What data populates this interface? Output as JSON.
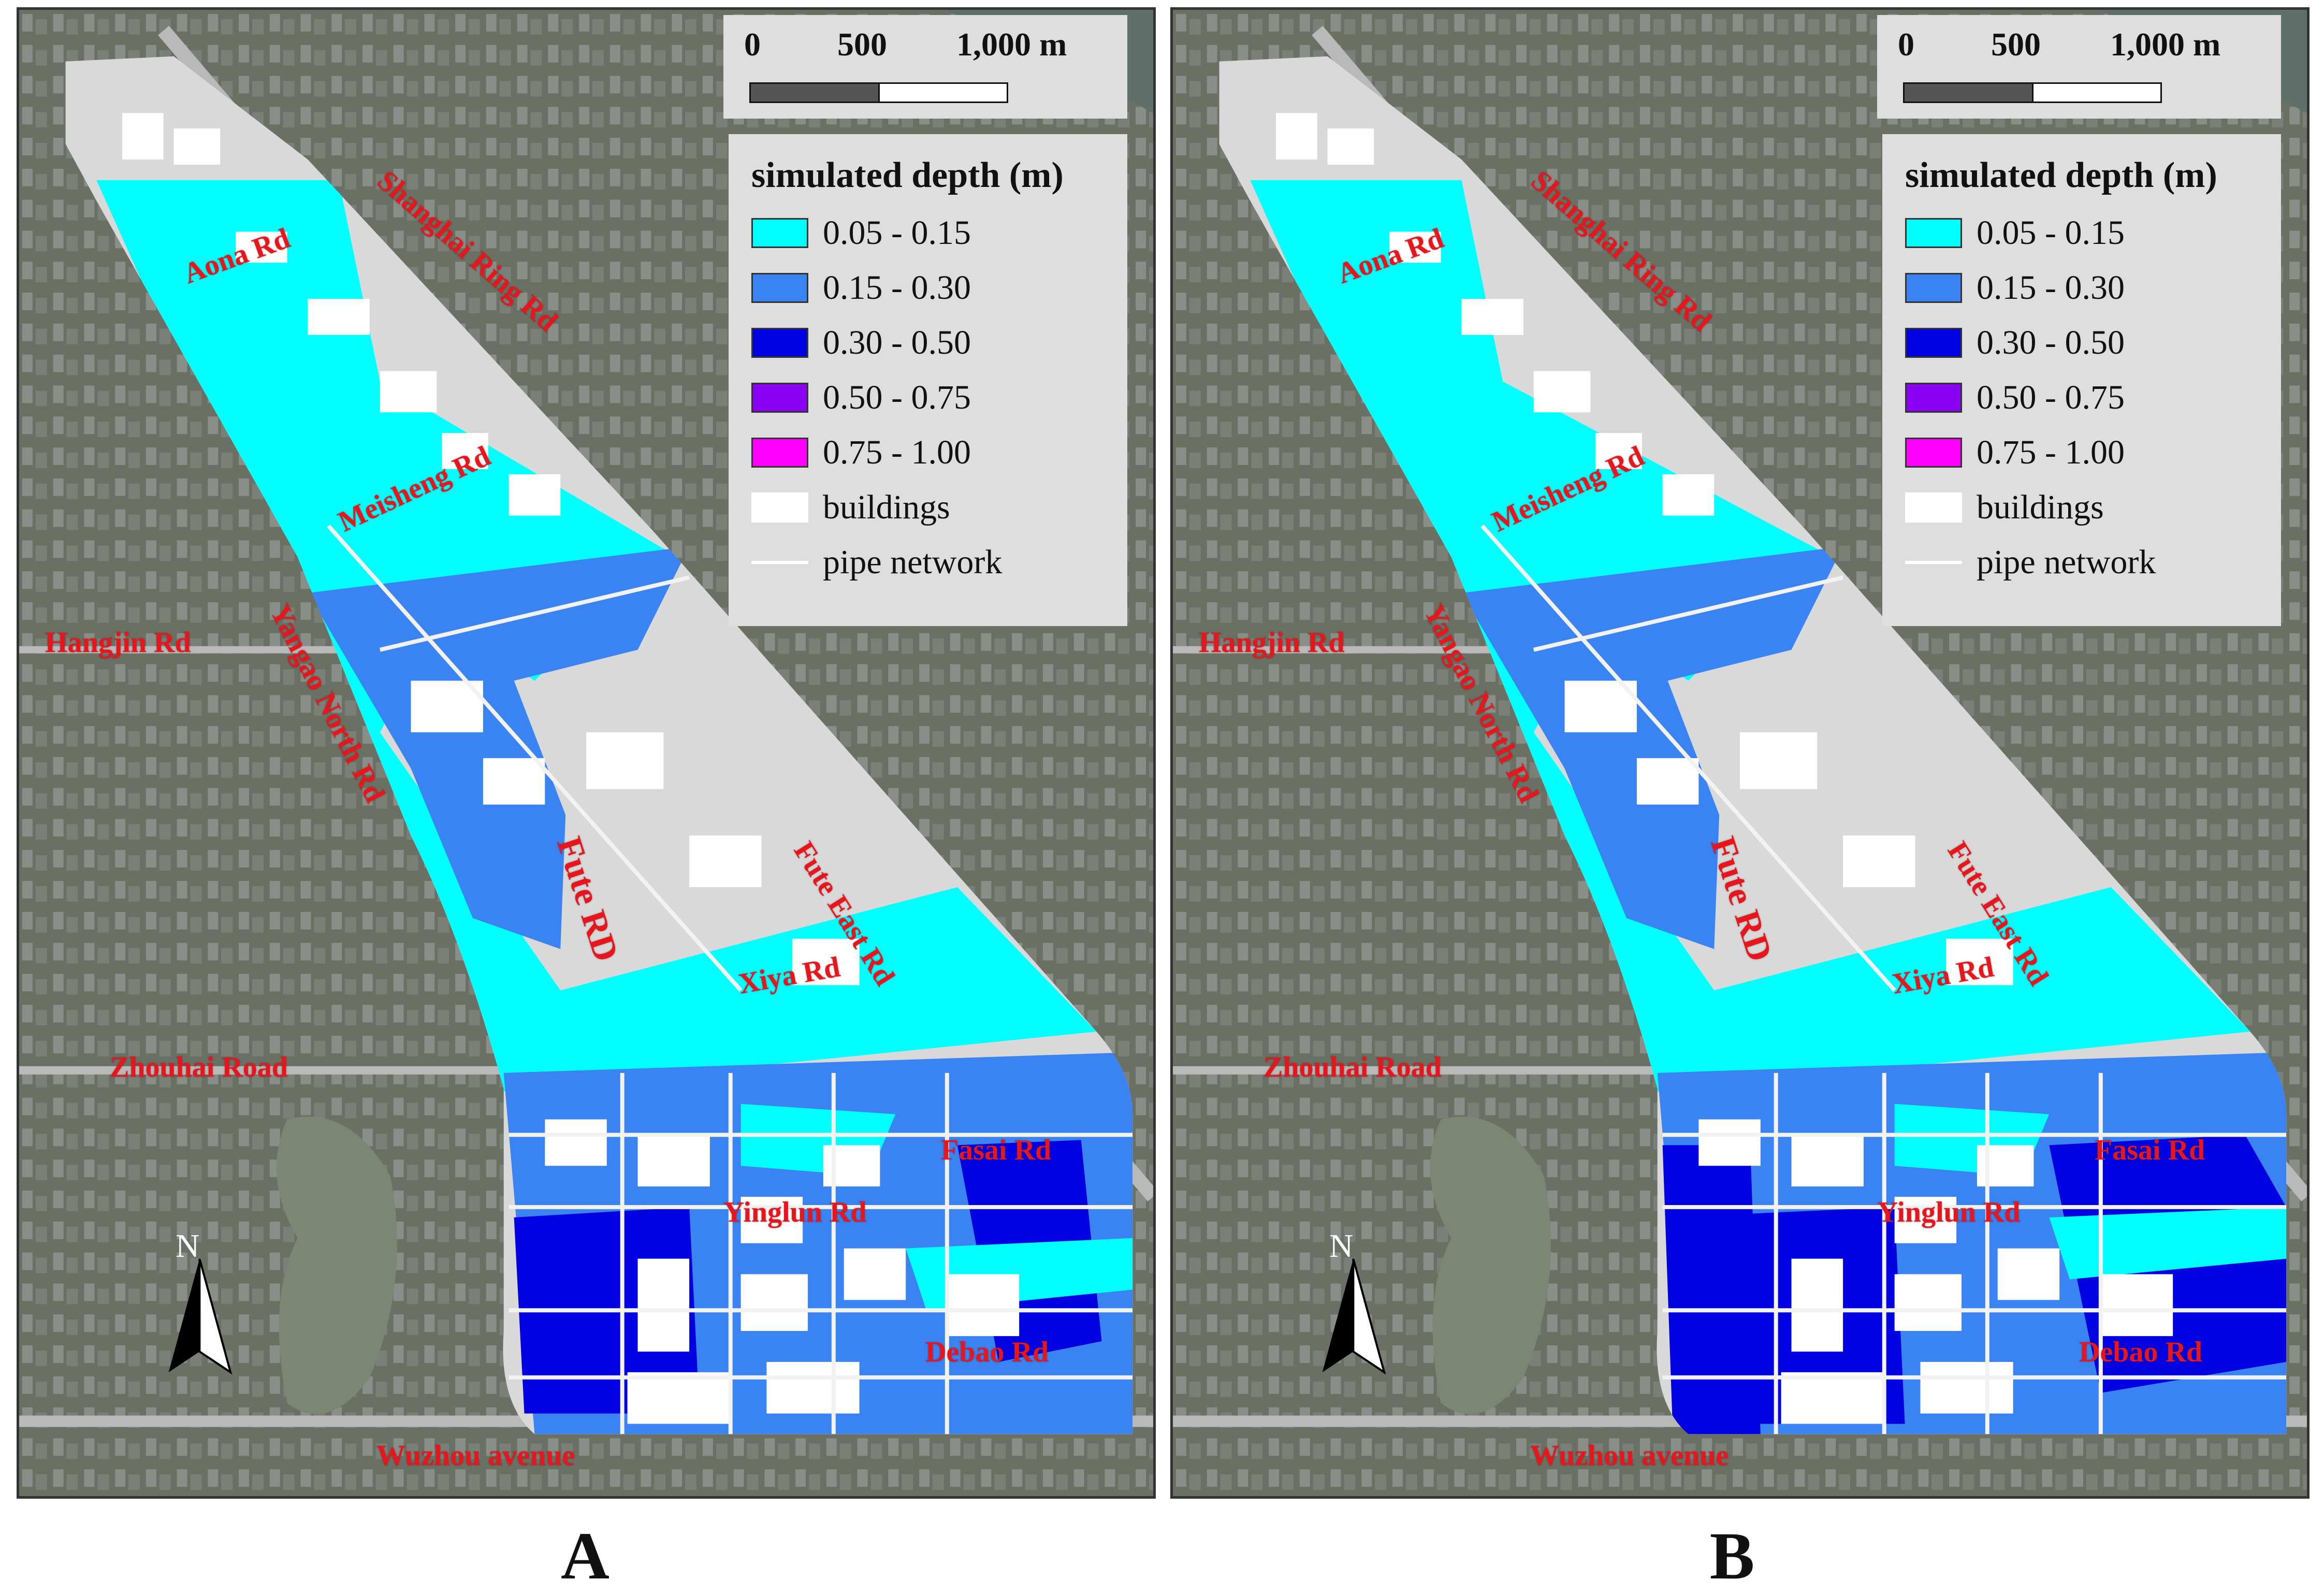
{
  "panels": [
    {
      "id": "A",
      "letter": "A",
      "scale": {
        "ticks": [
          "0",
          "500",
          "1,000 m"
        ]
      },
      "legend": {
        "title": "simulated depth (m)",
        "items": [
          {
            "label": "0.05 - 0.15",
            "color": "#00ffff"
          },
          {
            "label": "0.15 - 0.30",
            "color": "#3a83f2"
          },
          {
            "label": "0.30 - 0.50",
            "color": "#0000e0"
          },
          {
            "label": "0.50 - 0.75",
            "color": "#8a00f0"
          },
          {
            "label": "0.75 - 1.00",
            "color": "#ff00ff"
          },
          {
            "label": "buildings",
            "color": "#ffffff"
          },
          {
            "label": "pipe network",
            "color": "#ffffff"
          }
        ]
      },
      "north_label": "N",
      "roads": [
        "Shanghai Ring Rd",
        "Aona Rd",
        "Meisheng Rd",
        "Yangao North Rd",
        "Hangjin Rd",
        "Fute RD",
        "Fute East Rd",
        "Xiya Rd",
        "Zhouhai Road",
        "Fasai Rd",
        "Yinglun Rd",
        "Debao Rd",
        "Wuzhou avenue"
      ]
    },
    {
      "id": "B",
      "letter": "B",
      "scale": {
        "ticks": [
          "0",
          "500",
          "1,000 m"
        ]
      },
      "legend": {
        "title": "simulated depth (m)",
        "items": [
          {
            "label": "0.05 - 0.15",
            "color": "#00ffff"
          },
          {
            "label": "0.15 - 0.30",
            "color": "#3a83f2"
          },
          {
            "label": "0.30 - 0.50",
            "color": "#0000e0"
          },
          {
            "label": "0.50 - 0.75",
            "color": "#8a00f0"
          },
          {
            "label": "0.75 - 1.00",
            "color": "#ff00ff"
          },
          {
            "label": "buildings",
            "color": "#ffffff"
          },
          {
            "label": "pipe network",
            "color": "#ffffff"
          }
        ]
      },
      "north_label": "N",
      "roads": [
        "Shanghai Ring Rd",
        "Aona Rd",
        "Meisheng Rd",
        "Yangao North Rd",
        "Hangjin Rd",
        "Fute RD",
        "Fute East Rd",
        "Xiya Rd",
        "Zhouhai Road",
        "Fasai Rd",
        "Yinglun Rd",
        "Debao Rd",
        "Wuzhou avenue"
      ]
    }
  ],
  "colors": {
    "background_imagery": "#5d6357",
    "road_label": "#e8161c",
    "study_area": "#d9d9d9"
  }
}
